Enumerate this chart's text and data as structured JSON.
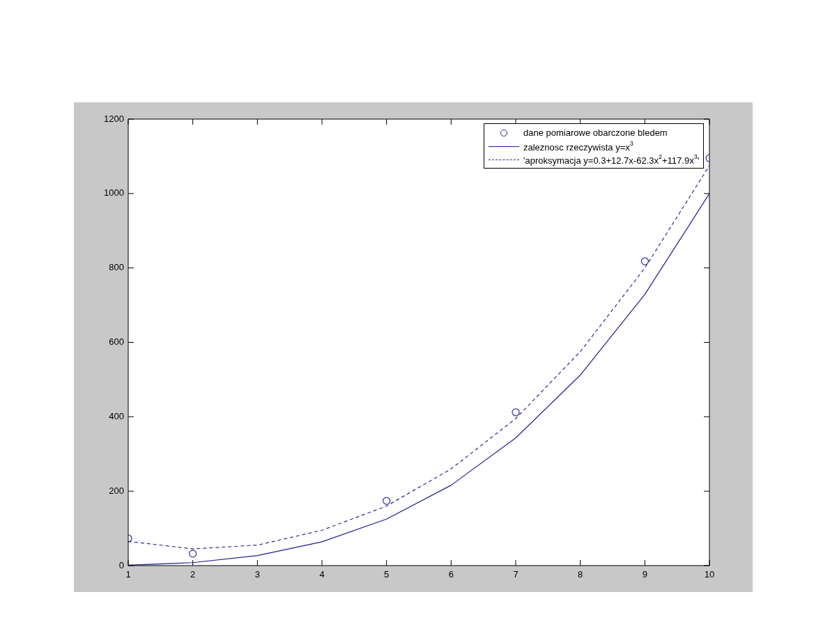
{
  "chart_data": {
    "type": "line",
    "xlim": [
      1,
      10
    ],
    "xticks": [
      1,
      2,
      3,
      4,
      5,
      6,
      7,
      8,
      9,
      10
    ],
    "ylim": [
      0,
      1200
    ],
    "yticks": [
      0,
      200,
      400,
      600,
      800,
      1000,
      1200
    ],
    "grid": false,
    "legend": "top right",
    "series": [
      {
        "name": "dane pomiarowe obarczone bledem",
        "type": "scatter",
        "color": "#2b2b9a",
        "marker": "circle",
        "x": [
          1,
          2,
          5,
          7,
          9,
          10
        ],
        "values": [
          73,
          32,
          174,
          412,
          818,
          1095
        ]
      },
      {
        "name": "zaleznosc rzeczywista y=x$^{3}$",
        "type": "line",
        "color": "#1f1f8f",
        "marker": "none",
        "line_style": "solid",
        "x": [
          1,
          2,
          3,
          4,
          5,
          6,
          7,
          8,
          9,
          10
        ],
        "values": [
          1,
          8,
          27,
          64,
          125,
          216,
          343,
          512,
          729,
          1000
        ]
      },
      {
        "name": "'aproksymacja y=0.3+12.7x-62.3x$^{2}$+117.9x$^{3}$'",
        "type": "line",
        "color": "#2b2b9a",
        "marker": "none",
        "line_style": "dashed",
        "x": [
          1,
          2,
          3,
          4,
          5,
          6,
          7,
          8,
          9,
          10
        ],
        "values": [
          65,
          45,
          55,
          95,
          160,
          260,
          395,
          575,
          800,
          1075
        ]
      }
    ]
  }
}
